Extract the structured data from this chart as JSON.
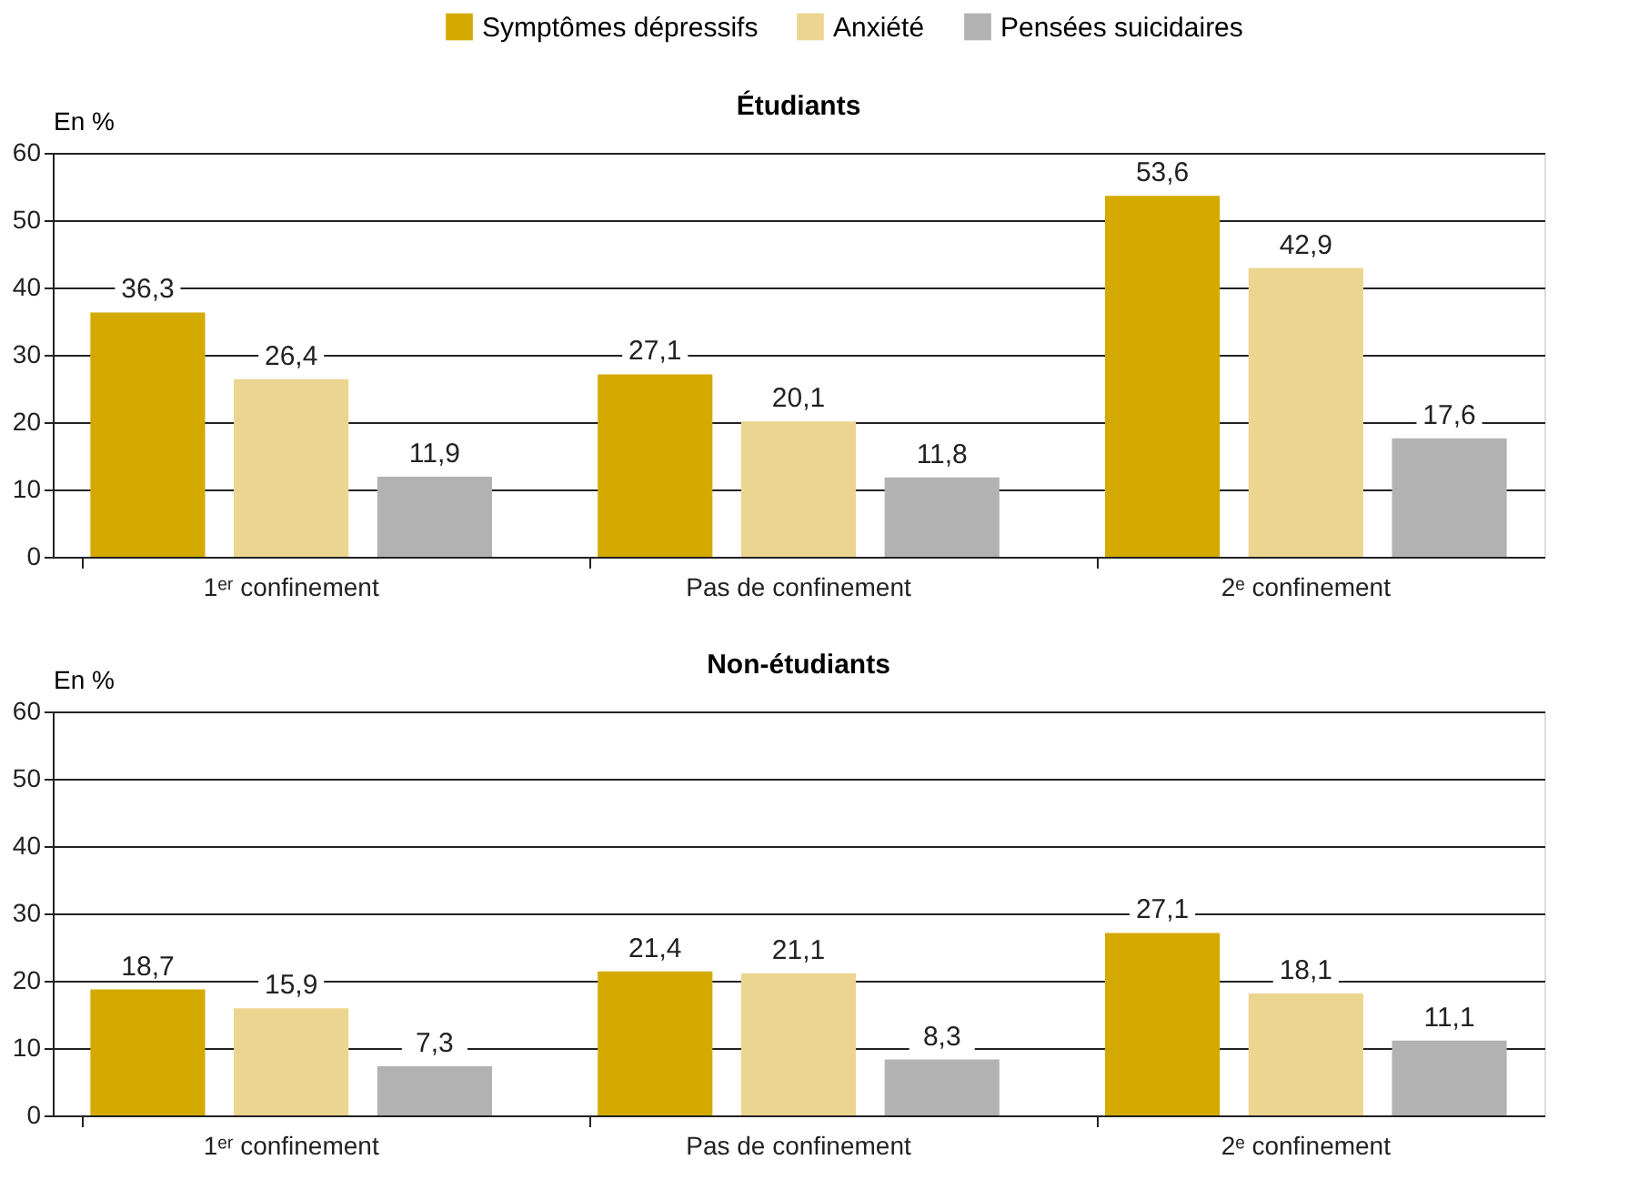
{
  "chart_data": [
    {
      "type": "bar",
      "title": "Étudiants",
      "ylabel": "En %",
      "categories": [
        "1ᵉʳ confinement",
        "Pas de confinement",
        "2ᵉ confinement"
      ],
      "series": [
        {
          "name": "Symptômes dépressifs",
          "color": "#d4aa00",
          "values": [
            36.3,
            27.1,
            53.6
          ],
          "value_labels": [
            "36,3",
            "27,1",
            "53,6"
          ]
        },
        {
          "name": "Anxiété",
          "color": "#ecd590",
          "values": [
            26.4,
            20.1,
            42.9
          ],
          "value_labels": [
            "26,4",
            "20,1",
            "42,9"
          ]
        },
        {
          "name": "Pensées suicidaires",
          "color": "#b2b2b2",
          "values": [
            11.9,
            11.8,
            17.6
          ],
          "value_labels": [
            "11,9",
            "11,8",
            "17,6"
          ]
        }
      ],
      "ylim": [
        0,
        60
      ],
      "yticks": [
        0,
        10,
        20,
        30,
        40,
        50,
        60
      ],
      "grid": "y",
      "legend": "top"
    },
    {
      "type": "bar",
      "title": "Non-étudiants",
      "ylabel": "En %",
      "categories": [
        "1ᵉʳ confinement",
        "Pas de confinement",
        "2ᵉ confinement"
      ],
      "series": [
        {
          "name": "Symptômes dépressifs",
          "color": "#d4aa00",
          "values": [
            18.7,
            21.4,
            27.1
          ],
          "value_labels": [
            "18,7",
            "21,4",
            "27,1"
          ]
        },
        {
          "name": "Anxiété",
          "color": "#ecd590",
          "values": [
            15.9,
            21.1,
            18.1
          ],
          "value_labels": [
            "15,9",
            "21,1",
            "18,1"
          ]
        },
        {
          "name": "Pensées suicidaires",
          "color": "#b2b2b2",
          "values": [
            7.3,
            8.3,
            11.1
          ],
          "value_labels": [
            "7,3",
            "8,3",
            "11,1"
          ]
        }
      ],
      "ylim": [
        0,
        60
      ],
      "yticks": [
        0,
        10,
        20,
        30,
        40,
        50,
        60
      ],
      "grid": "y"
    }
  ]
}
